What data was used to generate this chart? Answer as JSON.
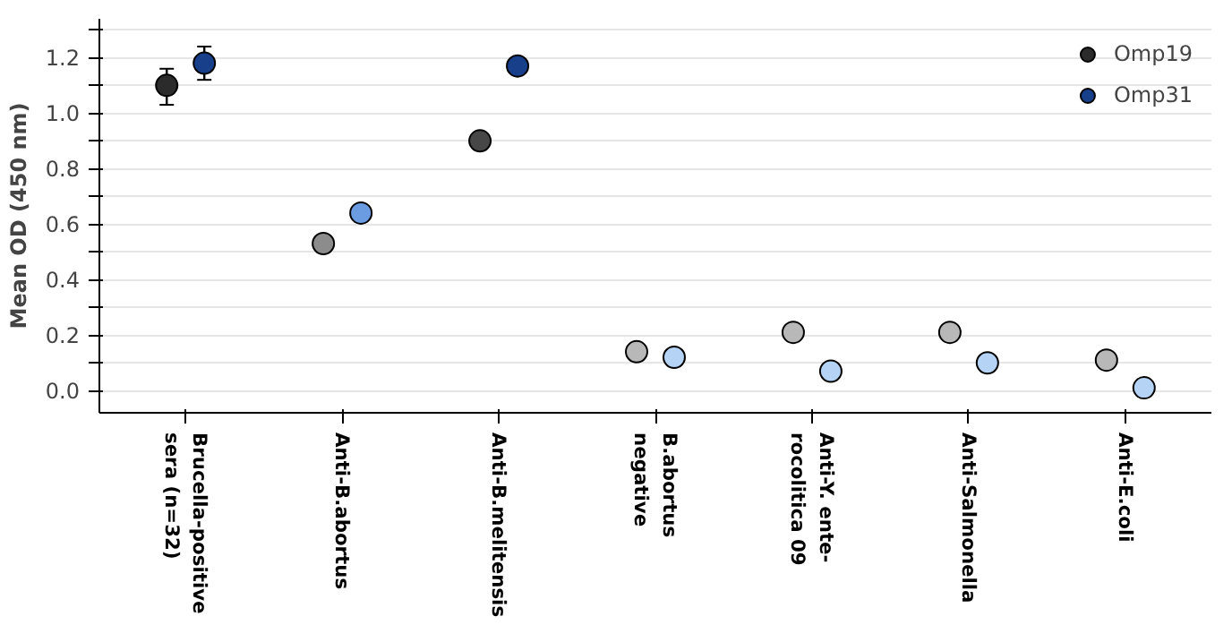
{
  "chart_data": {
    "type": "scatter",
    "ylabel": "Mean OD (450 nm)",
    "categories": [
      "Brucella-positive\nsera (n=32)",
      "Anti-B.abortus",
      "Anti-B.melitensis",
      "B.abortus\nnegative",
      "Anti-Y. ente-\nrocolitica 09",
      "Anti-Salmonella",
      "Anti-E.coli"
    ],
    "series": [
      {
        "name": "Omp19",
        "color": "#2b2b2b",
        "colors": [
          "#2b2b2b",
          "#8c8c8c",
          "#474747",
          "#b8b8b8",
          "#b8b8b8",
          "#b8b8b8",
          "#b8b8b8"
        ],
        "values": [
          1.1,
          0.53,
          0.9,
          0.14,
          0.21,
          0.21,
          0.11
        ],
        "errors": [
          [
            1.03,
            1.16
          ],
          null,
          null,
          null,
          null,
          null,
          null
        ]
      },
      {
        "name": "Omp31",
        "color": "#173f8a",
        "colors": [
          "#173f8a",
          "#6b9be0",
          "#173f8a",
          "#b5d4f5",
          "#b5d4f5",
          "#b5d4f5",
          "#b5d4f5"
        ],
        "values": [
          1.18,
          0.64,
          1.17,
          0.12,
          0.07,
          0.1,
          0.01
        ],
        "errors": [
          [
            1.12,
            1.24
          ],
          null,
          null,
          null,
          null,
          null,
          null
        ]
      }
    ],
    "ylim": [
      -0.08,
      1.34
    ],
    "yticks": [
      {
        "value": 0,
        "label": "0.0"
      },
      {
        "value": 0.1,
        "label": null
      },
      0.2,
      {
        "value": 0.3,
        "label": null
      },
      0.4,
      {
        "value": 0.5,
        "label": null
      },
      0.6,
      {
        "value": 0.7,
        "label": null
      },
      0.8,
      {
        "value": 0.9,
        "label": null
      },
      {
        "value": 1,
        "label": "1.0"
      },
      {
        "value": 1.1,
        "label": null
      },
      1.2,
      {
        "value": 1.3,
        "label": null
      }
    ],
    "grid": "y",
    "legend": "top right",
    "marker": "circle"
  }
}
